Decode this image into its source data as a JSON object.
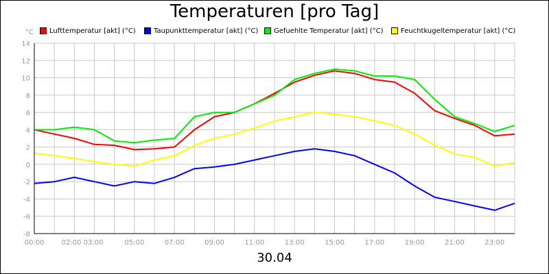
{
  "chart_data": {
    "type": "line",
    "title": "Temperaturen [pro Tag]",
    "xlabel": "30.04",
    "ylabel": "°C",
    "xlim": [
      0,
      24
    ],
    "ylim": [
      -8,
      14
    ],
    "y_ticks": [
      -8,
      -6,
      -4,
      -2,
      0,
      2,
      4,
      6,
      8,
      10,
      12,
      14
    ],
    "x_tick_labels": [
      {
        "t": 0,
        "label": "00:00"
      },
      {
        "t": 2.4,
        "label": "02:00 03:00"
      },
      {
        "t": 5,
        "label": "05:00"
      },
      {
        "t": 7,
        "label": "07:00"
      },
      {
        "t": 9,
        "label": "09:00"
      },
      {
        "t": 11,
        "label": "11:00"
      },
      {
        "t": 13,
        "label": "13:00"
      },
      {
        "t": 15,
        "label": "15:00"
      },
      {
        "t": 17,
        "label": "17:00"
      },
      {
        "t": 19,
        "label": "19:00"
      },
      {
        "t": 21,
        "label": "21:00"
      },
      {
        "t": 23,
        "label": "23:00"
      }
    ],
    "grid": true,
    "legend_position": "top",
    "x": [
      0,
      1,
      2,
      3,
      4,
      5,
      6,
      7,
      8,
      9,
      10,
      11,
      12,
      13,
      14,
      15,
      16,
      17,
      18,
      19,
      20,
      21,
      22,
      23,
      24
    ],
    "series": [
      {
        "name": "Lufttemperatur [akt] (°C)",
        "color": "#ff0000",
        "values": [
          4,
          3.5,
          3,
          2.3,
          2.2,
          1.7,
          1.8,
          2,
          4,
          5.5,
          6,
          7,
          8.2,
          9.5,
          10.3,
          10.8,
          10.5,
          9.8,
          9.5,
          8.2,
          6.2,
          5.3,
          4.5,
          3.3,
          3.5
        ]
      },
      {
        "name": "Taupunkttemperatur [akt] (°C)",
        "color": "#0000ff",
        "values": [
          -2.2,
          -2,
          -1.5,
          -2,
          -2.5,
          -2,
          -2.2,
          -1.5,
          -0.5,
          -0.3,
          0,
          0.5,
          1,
          1.5,
          1.8,
          1.5,
          1,
          0,
          -1,
          -2.5,
          -3.8,
          -4.3,
          -4.8,
          -5.3,
          -4.5
        ]
      },
      {
        "name": "Gefuehlte Temperatur [akt] (°C)",
        "color": "#00ee00",
        "values": [
          4,
          4,
          4.3,
          4,
          2.7,
          2.5,
          2.8,
          3,
          5.5,
          6,
          6,
          7,
          8,
          9.8,
          10.5,
          11,
          10.8,
          10.2,
          10.2,
          9.8,
          7.5,
          5.5,
          4.7,
          3.8,
          4.5
        ]
      },
      {
        "name": "Feuchtkugeltemperatur [akt] (°C)",
        "color": "#ffff00",
        "values": [
          1.3,
          1,
          0.7,
          0.3,
          0,
          -0.2,
          0.5,
          1,
          2.2,
          3,
          3.5,
          4.2,
          5,
          5.5,
          6,
          5.8,
          5.5,
          5,
          4.5,
          3.5,
          2.2,
          1.2,
          0.8,
          -0.2,
          0.2
        ]
      }
    ]
  }
}
